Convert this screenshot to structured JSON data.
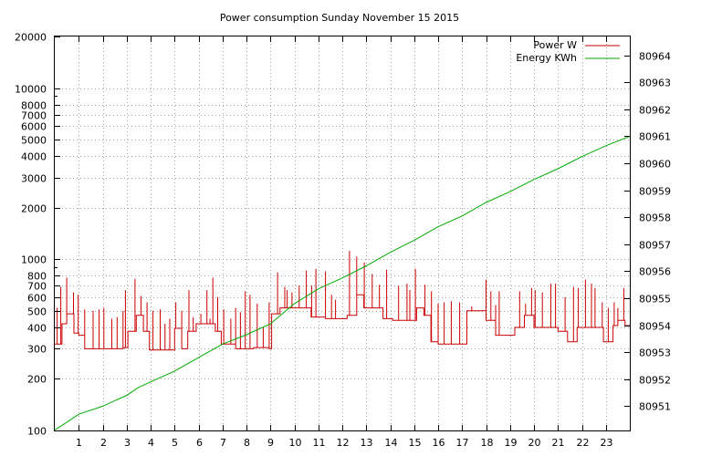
{
  "chart_data": {
    "type": "line",
    "title": "Power consumption Sunday November 15 2015",
    "xlabel": "",
    "ylabel": "",
    "xlim": [
      0,
      24
    ],
    "x_ticks": [
      1,
      2,
      3,
      4,
      5,
      6,
      7,
      8,
      9,
      10,
      11,
      12,
      13,
      14,
      15,
      16,
      17,
      18,
      19,
      20,
      21,
      22,
      23
    ],
    "y_scale": "log",
    "ylim": [
      100,
      20000
    ],
    "y_ticks": [
      100,
      200,
      300,
      400,
      500,
      600,
      700,
      800,
      1000,
      2000,
      3000,
      4000,
      5000,
      6000,
      7000,
      8000,
      10000,
      20000
    ],
    "y2lim": [
      80950.1,
      80964.7
    ],
    "y2_ticks": [
      80951,
      80952,
      80953,
      80954,
      80955,
      80956,
      80957,
      80958,
      80959,
      80960,
      80961,
      80962,
      80963,
      80964
    ],
    "grid": true,
    "legend_position": "top-right",
    "series": [
      {
        "name": "Power W",
        "color": "#cc0000",
        "axis": "y",
        "base": [
          [
            0.0,
            320
          ],
          [
            0.3,
            420
          ],
          [
            0.5,
            480
          ],
          [
            0.8,
            370
          ],
          [
            1.0,
            360
          ],
          [
            1.25,
            300
          ],
          [
            2.0,
            300
          ],
          [
            2.5,
            300
          ],
          [
            2.85,
            305
          ],
          [
            3.05,
            380
          ],
          [
            3.4,
            470
          ],
          [
            3.7,
            380
          ],
          [
            3.95,
            295
          ],
          [
            4.7,
            295
          ],
          [
            5.0,
            395
          ],
          [
            5.3,
            300
          ],
          [
            5.55,
            380
          ],
          [
            5.9,
            420
          ],
          [
            6.3,
            420
          ],
          [
            6.7,
            380
          ],
          [
            6.95,
            320
          ],
          [
            7.55,
            300
          ],
          [
            8.3,
            305
          ],
          [
            8.95,
            300
          ],
          [
            9.05,
            480
          ],
          [
            9.4,
            520
          ],
          [
            9.9,
            520
          ],
          [
            10.3,
            520
          ],
          [
            10.7,
            460
          ],
          [
            11.3,
            450
          ],
          [
            11.7,
            450
          ],
          [
            12.2,
            470
          ],
          [
            12.6,
            620
          ],
          [
            12.9,
            520
          ],
          [
            13.2,
            520
          ],
          [
            13.7,
            450
          ],
          [
            14.1,
            440
          ],
          [
            14.8,
            440
          ],
          [
            15.1,
            520
          ],
          [
            15.4,
            470
          ],
          [
            15.7,
            330
          ],
          [
            16.0,
            320
          ],
          [
            16.5,
            320
          ],
          [
            16.9,
            320
          ],
          [
            17.2,
            500
          ],
          [
            17.7,
            500
          ],
          [
            18.0,
            440
          ],
          [
            18.4,
            360
          ],
          [
            18.8,
            360
          ],
          [
            19.2,
            400
          ],
          [
            19.6,
            470
          ],
          [
            20.0,
            400
          ],
          [
            20.6,
            400
          ],
          [
            21.0,
            380
          ],
          [
            21.4,
            330
          ],
          [
            21.8,
            400
          ],
          [
            22.2,
            400
          ],
          [
            22.6,
            400
          ],
          [
            22.9,
            330
          ],
          [
            23.3,
            410
          ],
          [
            23.5,
            440
          ],
          [
            23.8,
            410
          ],
          [
            24.0,
            410
          ]
        ],
        "spikes": [
          [
            0.1,
            520
          ],
          [
            0.25,
            690
          ],
          [
            0.5,
            780
          ],
          [
            0.78,
            640
          ],
          [
            0.98,
            620
          ],
          [
            1.25,
            510
          ],
          [
            1.6,
            500
          ],
          [
            1.85,
            510
          ],
          [
            2.05,
            520
          ],
          [
            2.38,
            450
          ],
          [
            2.6,
            460
          ],
          [
            2.85,
            500
          ],
          [
            2.95,
            660
          ],
          [
            3.35,
            770
          ],
          [
            3.6,
            610
          ],
          [
            3.85,
            560
          ],
          [
            4.1,
            500
          ],
          [
            4.4,
            510
          ],
          [
            4.6,
            420
          ],
          [
            4.8,
            450
          ],
          [
            5.05,
            560
          ],
          [
            5.3,
            500
          ],
          [
            5.6,
            660
          ],
          [
            5.78,
            460
          ],
          [
            6.1,
            480
          ],
          [
            6.35,
            660
          ],
          [
            6.48,
            450
          ],
          [
            6.6,
            780
          ],
          [
            6.8,
            600
          ],
          [
            7.05,
            510
          ],
          [
            7.35,
            450
          ],
          [
            7.55,
            520
          ],
          [
            7.75,
            490
          ],
          [
            7.95,
            650
          ],
          [
            8.15,
            620
          ],
          [
            8.45,
            550
          ],
          [
            8.7,
            400
          ],
          [
            8.95,
            560
          ],
          [
            9.3,
            840
          ],
          [
            9.6,
            690
          ],
          [
            9.7,
            660
          ],
          [
            9.9,
            640
          ],
          [
            10.2,
            700
          ],
          [
            10.5,
            860
          ],
          [
            10.72,
            700
          ],
          [
            10.9,
            880
          ],
          [
            11.3,
            850
          ],
          [
            11.55,
            620
          ],
          [
            11.72,
            580
          ],
          [
            12.3,
            1120
          ],
          [
            12.6,
            1040
          ],
          [
            12.92,
            960
          ],
          [
            13.25,
            820
          ],
          [
            13.55,
            710
          ],
          [
            13.85,
            870
          ],
          [
            14.35,
            700
          ],
          [
            14.7,
            720
          ],
          [
            14.82,
            660
          ],
          [
            15.05,
            880
          ],
          [
            15.45,
            710
          ],
          [
            15.72,
            650
          ],
          [
            16.0,
            550
          ],
          [
            16.25,
            560
          ],
          [
            16.55,
            570
          ],
          [
            16.9,
            560
          ],
          [
            17.4,
            530
          ],
          [
            18.0,
            760
          ],
          [
            18.2,
            650
          ],
          [
            18.4,
            540
          ],
          [
            18.55,
            650
          ],
          [
            19.4,
            650
          ],
          [
            19.65,
            550
          ],
          [
            19.9,
            680
          ],
          [
            20.05,
            660
          ],
          [
            20.35,
            640
          ],
          [
            20.7,
            720
          ],
          [
            20.9,
            720
          ],
          [
            21.3,
            600
          ],
          [
            21.65,
            690
          ],
          [
            21.85,
            680
          ],
          [
            22.15,
            760
          ],
          [
            22.4,
            720
          ],
          [
            22.55,
            680
          ],
          [
            22.85,
            560
          ],
          [
            23.1,
            520
          ],
          [
            23.35,
            560
          ],
          [
            23.5,
            520
          ],
          [
            23.75,
            680
          ]
        ]
      },
      {
        "name": "Energy KWh",
        "color": "#00aa00",
        "axis": "y2",
        "points": [
          [
            0.0,
            80950.12
          ],
          [
            0.5,
            80950.4
          ],
          [
            1.0,
            80950.7
          ],
          [
            2.0,
            80951.0
          ],
          [
            3.0,
            80951.4
          ],
          [
            3.5,
            80951.7
          ],
          [
            4.0,
            80951.9
          ],
          [
            5.0,
            80952.3
          ],
          [
            6.0,
            80952.8
          ],
          [
            7.0,
            80953.3
          ],
          [
            8.0,
            80953.65
          ],
          [
            9.0,
            80954.05
          ],
          [
            10.0,
            80954.8
          ],
          [
            11.0,
            80955.35
          ],
          [
            12.0,
            80955.75
          ],
          [
            13.0,
            80956.2
          ],
          [
            14.0,
            80956.7
          ],
          [
            15.0,
            80957.15
          ],
          [
            16.0,
            80957.65
          ],
          [
            17.0,
            80958.05
          ],
          [
            18.0,
            80958.55
          ],
          [
            19.0,
            80958.95
          ],
          [
            20.0,
            80959.4
          ],
          [
            21.0,
            80959.8
          ],
          [
            22.0,
            80960.25
          ],
          [
            23.0,
            80960.65
          ],
          [
            24.0,
            80961.0
          ]
        ]
      }
    ]
  }
}
